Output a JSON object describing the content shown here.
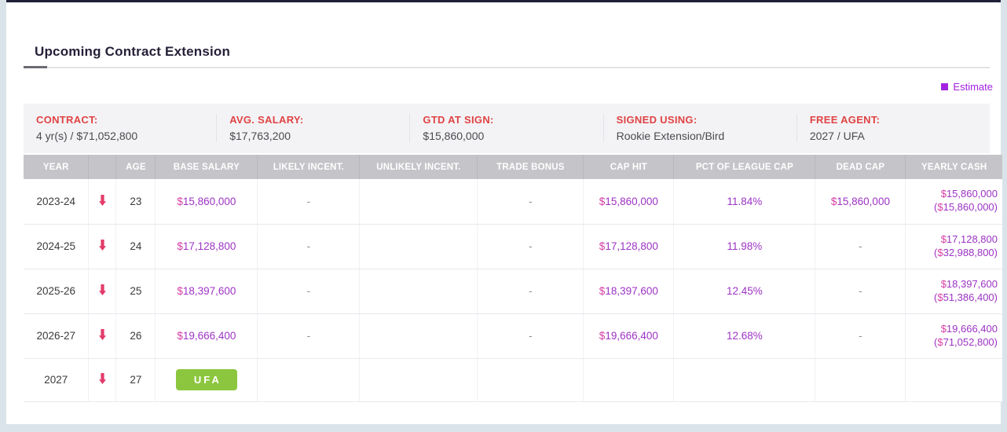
{
  "page": {
    "title": "Upcoming Contract Extension"
  },
  "legend": {
    "estimate_label": "Estimate"
  },
  "summary": {
    "items": [
      {
        "label": "CONTRACT:",
        "value": "4 yr(s) / $71,052,800"
      },
      {
        "label": "AVG. SALARY:",
        "value": "$17,763,200"
      },
      {
        "label": "GTD AT SIGN:",
        "value": "$15,860,000"
      },
      {
        "label": "SIGNED USING:",
        "value": "Rookie Extension/Bird"
      },
      {
        "label": "FREE AGENT:",
        "value": "2027 / UFA"
      }
    ]
  },
  "table": {
    "headers": [
      "YEAR",
      "",
      "AGE",
      "BASE SALARY",
      "LIKELY INCENT.",
      "UNLIKELY INCENT.",
      "TRADE BONUS",
      "CAP HIT",
      "PCT OF LEAGUE CAP",
      "DEAD CAP",
      "YEARLY CASH"
    ],
    "rows": [
      {
        "year": "2023-24",
        "age": "23",
        "base_salary": "$15,860,000",
        "likely_incent": "-",
        "unlikely_incent": "",
        "trade_bonus": "-",
        "cap_hit": "$15,860,000",
        "pct_of_league_cap": "11.84%",
        "dead_cap": "$15,860,000",
        "yearly_cash": "$15,860,000",
        "yearly_cash_total": "($15,860,000)"
      },
      {
        "year": "2024-25",
        "age": "24",
        "base_salary": "$17,128,800",
        "likely_incent": "-",
        "unlikely_incent": "",
        "trade_bonus": "-",
        "cap_hit": "$17,128,800",
        "pct_of_league_cap": "11.98%",
        "dead_cap": "-",
        "yearly_cash": "$17,128,800",
        "yearly_cash_total": "($32,988,800)"
      },
      {
        "year": "2025-26",
        "age": "25",
        "base_salary": "$18,397,600",
        "likely_incent": "-",
        "unlikely_incent": "",
        "trade_bonus": "-",
        "cap_hit": "$18,397,600",
        "pct_of_league_cap": "12.45%",
        "dead_cap": "-",
        "yearly_cash": "$18,397,600",
        "yearly_cash_total": "($51,386,400)"
      },
      {
        "year": "2026-27",
        "age": "26",
        "base_salary": "$19,666,400",
        "likely_incent": "-",
        "unlikely_incent": "",
        "trade_bonus": "-",
        "cap_hit": "$19,666,400",
        "pct_of_league_cap": "12.68%",
        "dead_cap": "-",
        "yearly_cash": "$19,666,400",
        "yearly_cash_total": "($71,052,800)"
      },
      {
        "year": "2027",
        "age": "27",
        "free_agent_badge": "UFA",
        "likely_incent": "",
        "unlikely_incent": "",
        "trade_bonus": "",
        "cap_hit": "",
        "pct_of_league_cap": "",
        "dead_cap": "",
        "yearly_cash": "",
        "yearly_cash_total": ""
      }
    ]
  },
  "colors": {
    "estimate_purple": "#a322e0",
    "value_purple": "#9d33c4",
    "dollar_pink": "#d63da4",
    "label_red": "#e04343",
    "ufa_green": "#8cc63e",
    "arrow_red": "#e23b69"
  }
}
